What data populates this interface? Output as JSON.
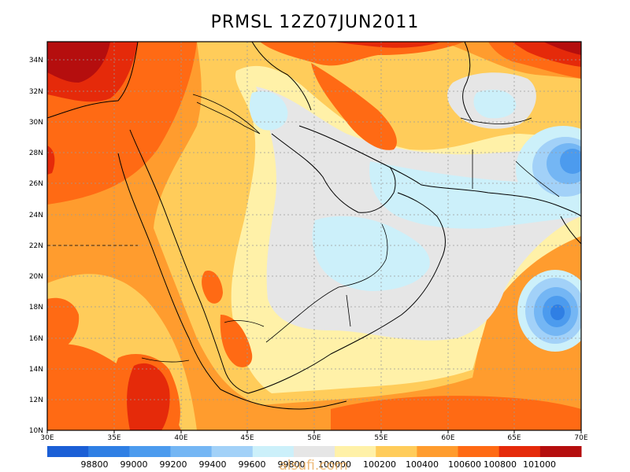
{
  "title": "PRMSL 12Z07JUN2011",
  "x_ticks": [
    "30E",
    "35E",
    "40E",
    "45E",
    "50E",
    "55E",
    "60E",
    "65E",
    "70E"
  ],
  "y_ticks": [
    "10N",
    "12N",
    "14N",
    "16N",
    "18N",
    "20N",
    "22N",
    "24N",
    "26N",
    "28N",
    "30N",
    "32N",
    "34N"
  ],
  "colorbar_labels": [
    "98800",
    "99000",
    "99200",
    "99400",
    "99600",
    "99800",
    "100000",
    "100200",
    "100400",
    "100600",
    "100800",
    "101000"
  ],
  "colorbar_colors": [
    "#1b5fd6",
    "#2f7fe4",
    "#4c9bee",
    "#74b6f4",
    "#a2d1f8",
    "#ccf0fa",
    "#e6e6e6",
    "#fff1a8",
    "#ffcc5a",
    "#ff9c2e",
    "#ff6a14",
    "#e52a0a",
    "#b50e0e"
  ],
  "watermark": "alsufi.com",
  "colors": {
    "sea_grey": "#e6e6e6",
    "low_core": "#1b5fd6",
    "high_core": "#b50e0e"
  }
}
